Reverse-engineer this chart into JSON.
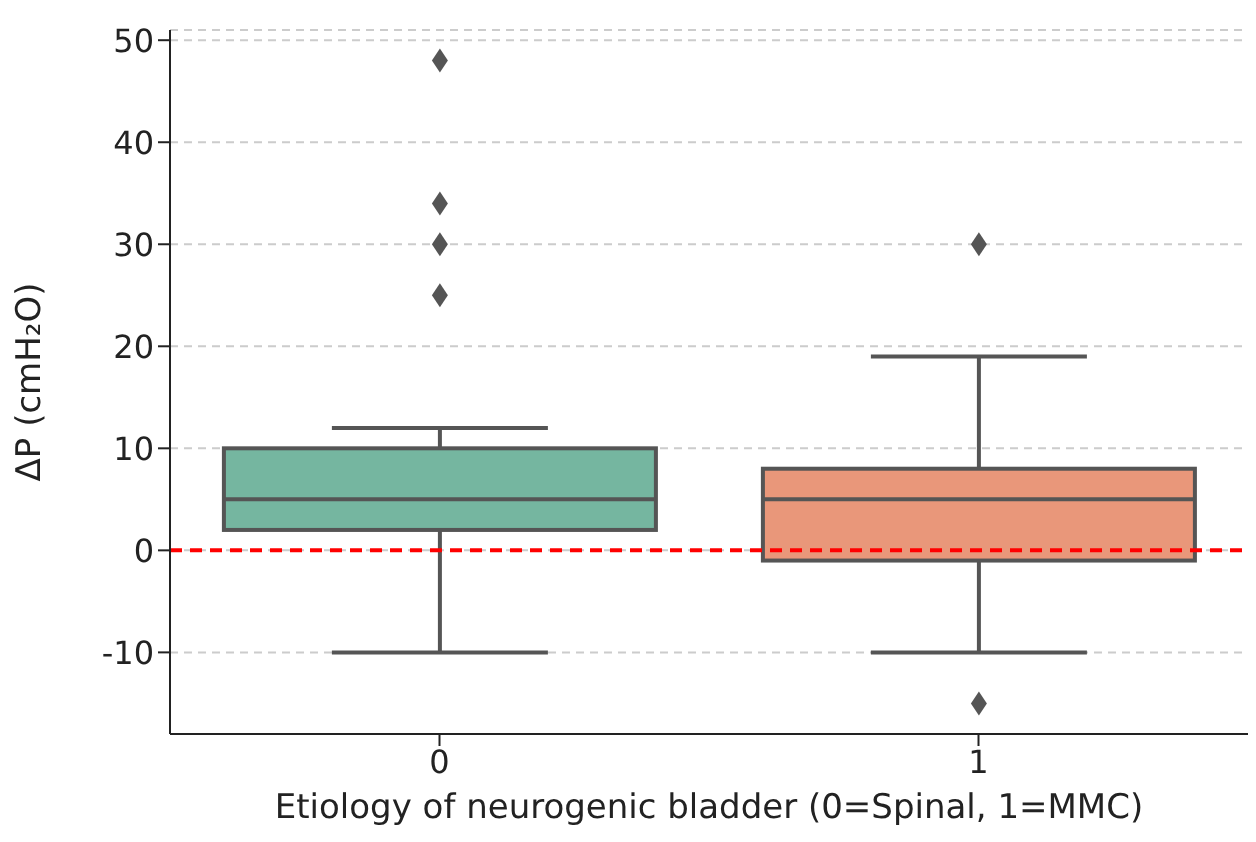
{
  "chart_data": {
    "type": "box",
    "xlabel": "Etiology of neurogenic bladder (0=Spinal, 1=MMC)",
    "ylabel": "ΔP (cmH₂O)",
    "categories": [
      "0",
      "1"
    ],
    "boxes": [
      {
        "low": -10,
        "q1": 2,
        "median": 5,
        "q3": 10,
        "high": 12,
        "outliers": [
          25,
          30,
          34,
          48
        ]
      },
      {
        "low": -10,
        "q1": -1,
        "median": 5,
        "q3": 8,
        "high": 19,
        "outliers": [
          30,
          -15
        ]
      }
    ],
    "colors": [
      "#75b6a0",
      "#e9977a"
    ],
    "ylim": [
      -18,
      51
    ],
    "yticks": [
      -10,
      0,
      10,
      20,
      30,
      40,
      50
    ],
    "grid": "y",
    "ref_lines": [
      {
        "axis": "y",
        "value": 0,
        "color": "#ff0000",
        "line_style": "dashed"
      }
    ]
  }
}
